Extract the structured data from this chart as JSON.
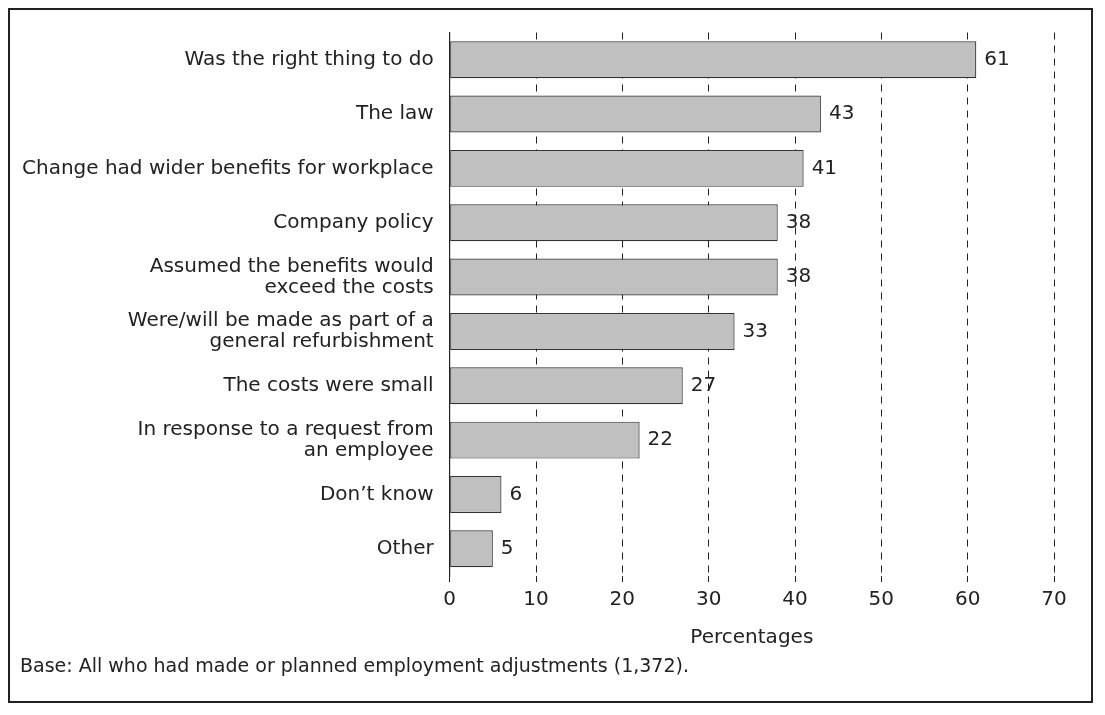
{
  "chart_data": {
    "type": "bar",
    "orientation": "horizontal",
    "categories": [
      "Was the right thing to do",
      "The law",
      "Change had wider benefits for workplace",
      "Company policy",
      "Assumed the benefits would exceed the costs",
      "Were/will be made as part of a general refurbishment",
      "The costs were small",
      "In response to a request from an employee",
      "Don’t know",
      "Other"
    ],
    "values": [
      61,
      43,
      41,
      38,
      38,
      33,
      27,
      22,
      6,
      5
    ],
    "color": "#c0c0c0",
    "xlim": [
      0,
      70
    ],
    "xticks": [
      0,
      10,
      20,
      30,
      40,
      50,
      60,
      70
    ],
    "xlabel": "Percentages",
    "grid": "x",
    "data_labels": true,
    "legend": false,
    "annotations": [
      "Base: All who had made or planned employment adjustments (1,372)."
    ]
  }
}
